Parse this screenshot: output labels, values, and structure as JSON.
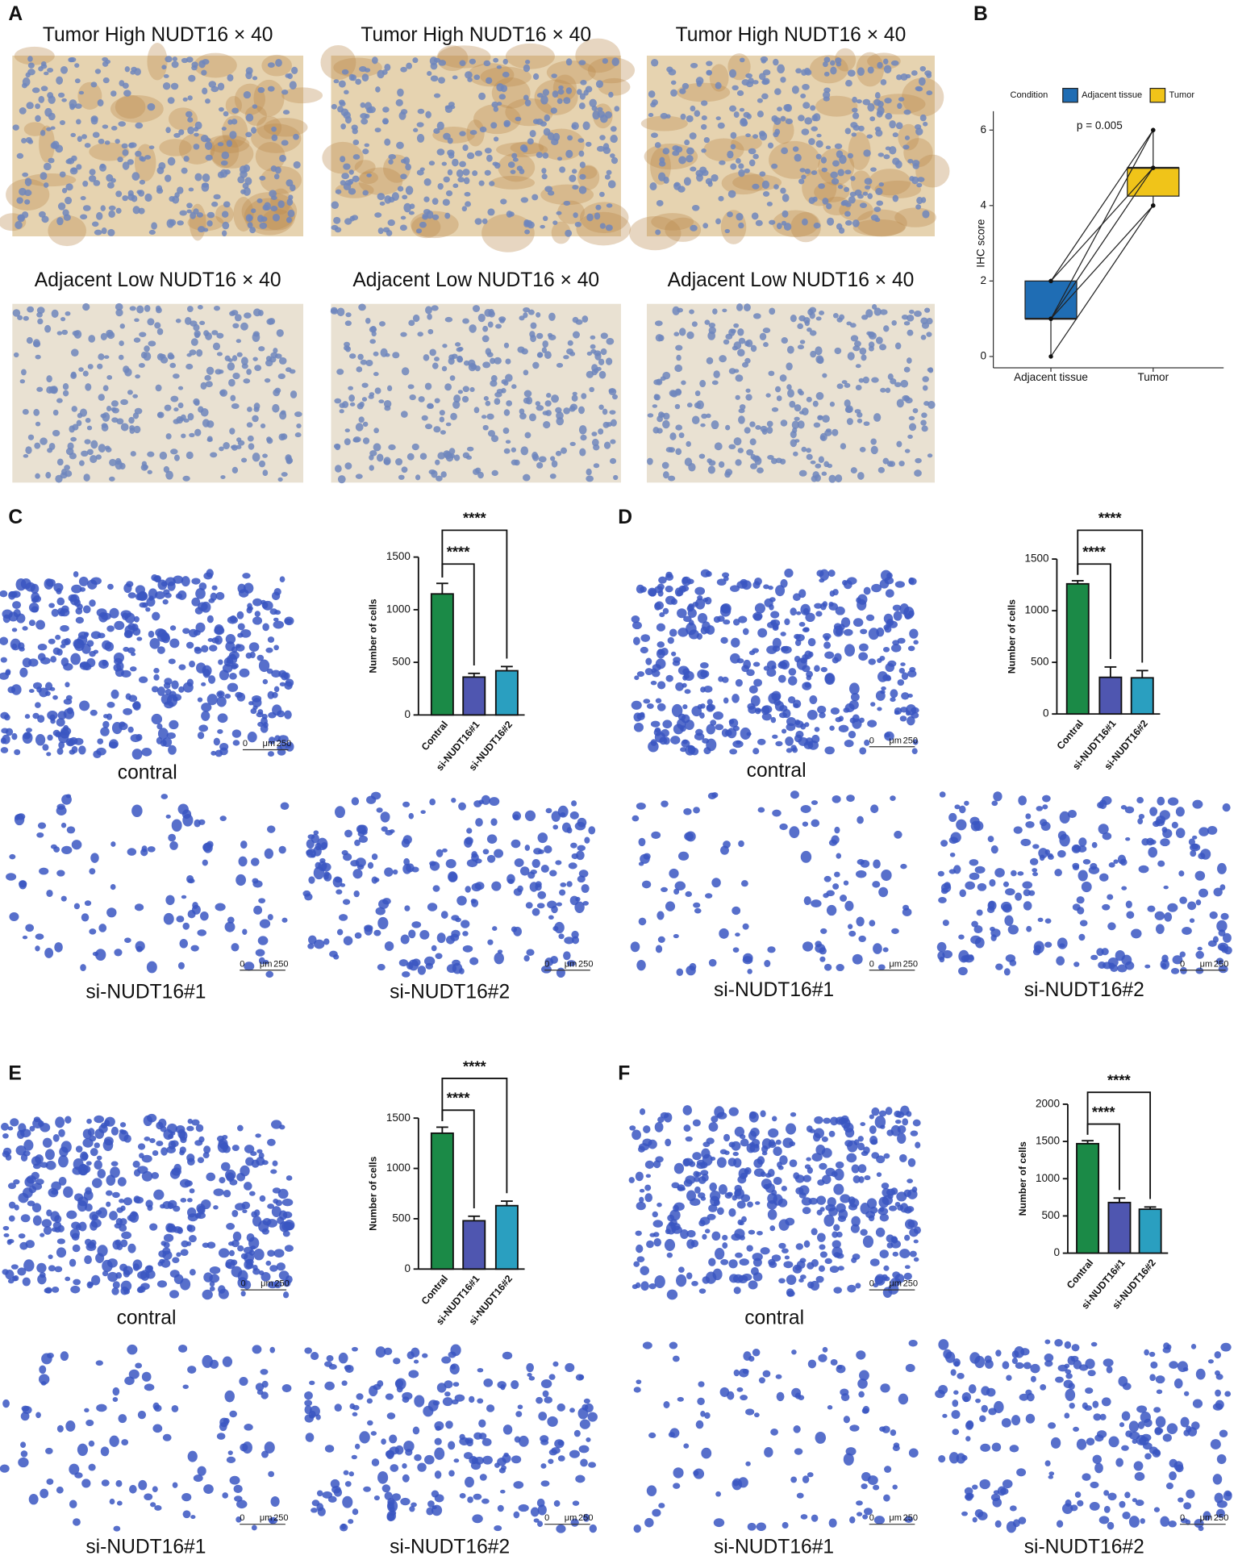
{
  "panel_labels": [
    "A",
    "B",
    "C",
    "D",
    "E",
    "F"
  ],
  "panel_a": {
    "captions": [
      "Tumor High NUDT16 × 40",
      "Tumor High NUDT16 × 40",
      "Tumor High NUDT16 × 40",
      "Adjacent Low NUDT16 × 40",
      "Adjacent Low NUDT16 × 40",
      "Adjacent Low NUDT16 × 40"
    ]
  },
  "image_captions": {
    "control": "contral",
    "si1": "si-NUDT16#1",
    "si2": "si-NUDT16#2"
  },
  "scale_bar": {
    "zero": "0",
    "unit": "μm",
    "length": "250"
  },
  "chart_data": [
    {
      "type": "box",
      "ylabel": "IHC score",
      "legend_title": "Condition",
      "annotation": "p = 0.005",
      "categories": [
        "Adjacent tissue",
        "Tumor"
      ],
      "series": [
        {
          "name": "Adjacent tissue",
          "color": "#1f6db4",
          "values": [
            2,
            2,
            1,
            1,
            1,
            0
          ],
          "box": {
            "min": 0,
            "q1": 1,
            "median": 1,
            "q3": 2,
            "max": 2
          }
        },
        {
          "name": "Tumor",
          "color": "#f0c419",
          "values": [
            6,
            5,
            6,
            5,
            4,
            4
          ],
          "box": {
            "min": 4,
            "q1": 4.25,
            "median": 5,
            "q3": 5,
            "max": 6
          }
        }
      ],
      "ylim": [
        -0.3,
        6.5
      ],
      "yticks": [
        0,
        2,
        4,
        6
      ]
    },
    {
      "type": "bar",
      "ylabel": "Number of cells",
      "categories": [
        "Contral",
        "si-NUDT16#1",
        "si-NUDT16#2"
      ],
      "colors": [
        "#1b8a47",
        "#4f56b0",
        "#2a9fc0"
      ],
      "values": [
        1150,
        360,
        420
      ],
      "errors": [
        100,
        35,
        40
      ],
      "significance": [
        "****",
        "****"
      ],
      "ylim": [
        0,
        1500
      ],
      "yticks": [
        0,
        500,
        1000,
        1500
      ]
    },
    {
      "type": "bar",
      "ylabel": "Number of cells",
      "categories": [
        "Contral",
        "si-NUDT16#1",
        "si-NUDT16#2"
      ],
      "colors": [
        "#1b8a47",
        "#4f56b0",
        "#2a9fc0"
      ],
      "values": [
        1260,
        355,
        350
      ],
      "errors": [
        30,
        100,
        70
      ],
      "significance": [
        "****",
        "****"
      ],
      "ylim": [
        0,
        1500
      ],
      "yticks": [
        0,
        500,
        1000,
        1500
      ]
    },
    {
      "type": "bar",
      "ylabel": "Number of cells",
      "categories": [
        "Contral",
        "si-NUDT16#1",
        "si-NUDT16#2"
      ],
      "colors": [
        "#1b8a47",
        "#4f56b0",
        "#2a9fc0"
      ],
      "values": [
        1350,
        480,
        630
      ],
      "errors": [
        60,
        45,
        45
      ],
      "significance": [
        "****",
        "****"
      ],
      "ylim": [
        0,
        1500
      ],
      "yticks": [
        0,
        500,
        1000,
        1500
      ]
    },
    {
      "type": "bar",
      "ylabel": "Number of cells",
      "categories": [
        "Contral",
        "si-NUDT16#1",
        "si-NUDT16#2"
      ],
      "colors": [
        "#1b8a47",
        "#4f56b0",
        "#2a9fc0"
      ],
      "values": [
        1470,
        680,
        590
      ],
      "errors": [
        40,
        60,
        30
      ],
      "significance": [
        "****",
        "****"
      ],
      "ylim": [
        0,
        2000
      ],
      "yticks": [
        0,
        500,
        1000,
        1500,
        2000
      ]
    }
  ]
}
